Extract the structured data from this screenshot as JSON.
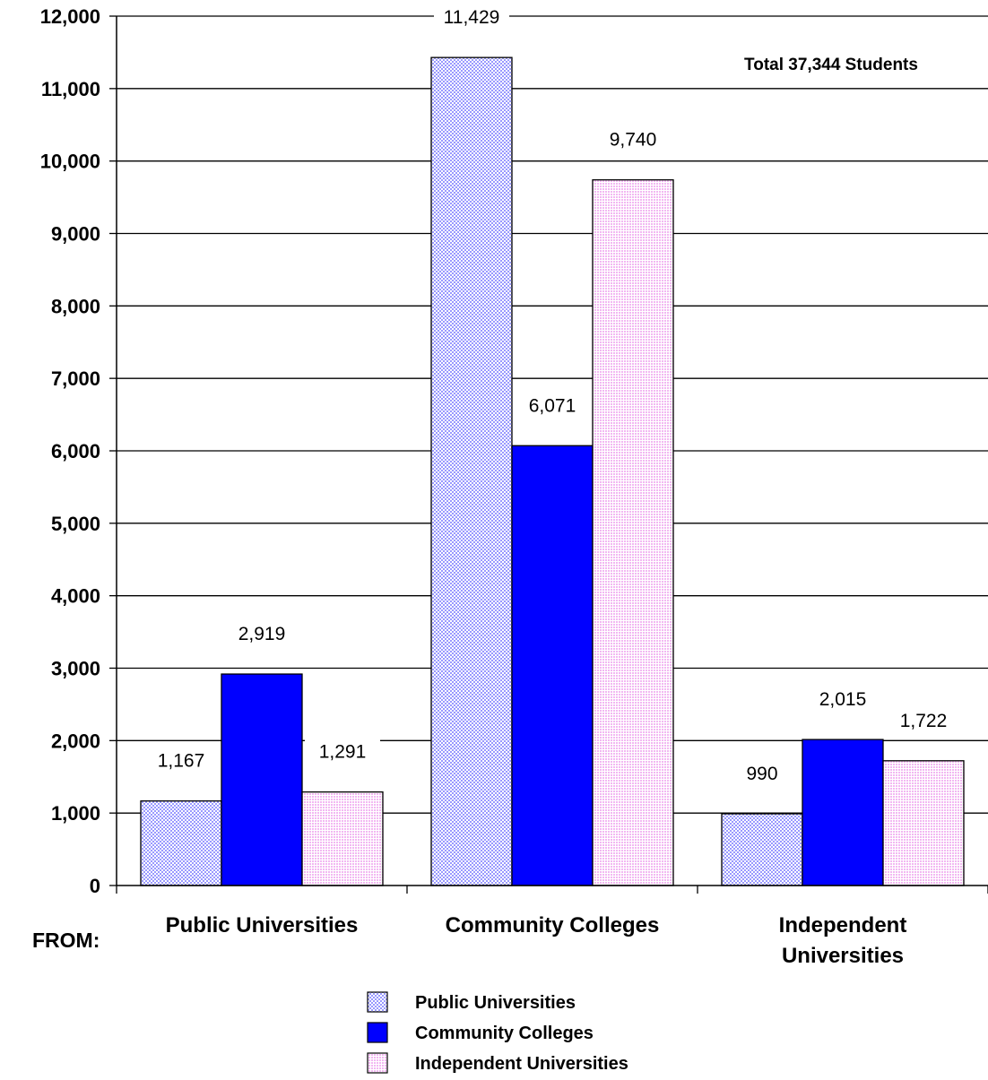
{
  "chart_data": {
    "type": "bar",
    "x_prefix_label": "FROM:",
    "categories": [
      "Public Universities",
      "Community Colleges",
      "Independent Universities"
    ],
    "series": [
      {
        "name": "Public Universities",
        "values": [
          1167,
          11429,
          990
        ],
        "labels": [
          "1,167",
          "11,429",
          "990"
        ],
        "color": "#9999ff",
        "pattern": "checker"
      },
      {
        "name": "Community Colleges",
        "values": [
          2919,
          6071,
          2015
        ],
        "labels": [
          "2,919",
          "6,071",
          "2,015"
        ],
        "color": "#0000ff",
        "pattern": "solid"
      },
      {
        "name": "Independent Universities",
        "values": [
          1291,
          9740,
          1722
        ],
        "labels": [
          "1,291",
          "9,740",
          "1,722"
        ],
        "color": "#ffccff",
        "pattern": "dots"
      }
    ],
    "ylim": [
      0,
      12000
    ],
    "yticks": [
      0,
      1000,
      2000,
      3000,
      4000,
      5000,
      6000,
      7000,
      8000,
      9000,
      10000,
      11000,
      12000
    ],
    "ytick_labels": [
      "0",
      "1,000",
      "2,000",
      "3,000",
      "4,000",
      "5,000",
      "6,000",
      "7,000",
      "8,000",
      "9,000",
      "10,000",
      "11,000",
      "12,000"
    ],
    "grid": true,
    "annotation": "Total 37,344 Students",
    "legend_position": "bottom"
  }
}
